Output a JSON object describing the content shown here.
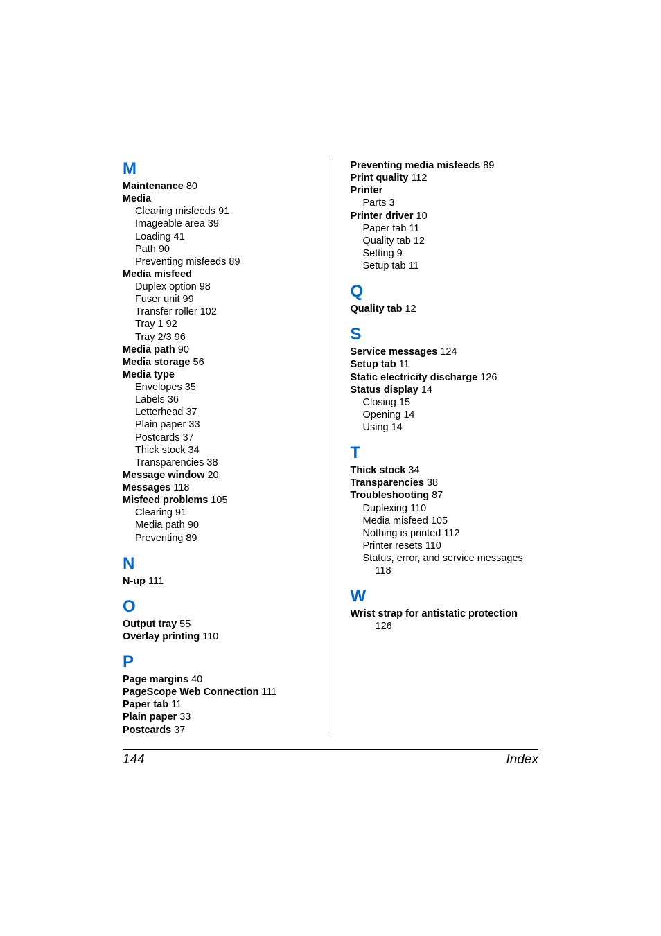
{
  "colors": {
    "heading": "#0066cc",
    "text": "#000000",
    "background": "#ffffff"
  },
  "typography": {
    "body_fontsize": 14.5,
    "heading_fontsize": 24,
    "footer_fontsize": 19
  },
  "footer": {
    "page_number": "144",
    "section": "Index"
  },
  "left": {
    "M": {
      "letter": "M",
      "entries": [
        {
          "bold": "Maintenance",
          "page": " 80"
        },
        {
          "bold": "Media",
          "subs": [
            {
              "text": "Clearing misfeeds 91"
            },
            {
              "text": "Imageable area 39"
            },
            {
              "text": "Loading 41"
            },
            {
              "text": "Path 90"
            },
            {
              "text": "Preventing misfeeds 89"
            }
          ]
        },
        {
          "bold": "Media misfeed",
          "subs": [
            {
              "text": "Duplex option 98"
            },
            {
              "text": "Fuser unit 99"
            },
            {
              "text": "Transfer roller 102"
            },
            {
              "text": "Tray 1 92"
            },
            {
              "text": "Tray 2/3 96"
            }
          ]
        },
        {
          "bold": "Media path",
          "page": " 90"
        },
        {
          "bold": "Media storage",
          "page": " 56"
        },
        {
          "bold": "Media type",
          "subs": [
            {
              "text": "Envelopes 35"
            },
            {
              "text": "Labels 36"
            },
            {
              "text": "Letterhead 37"
            },
            {
              "text": "Plain paper 33"
            },
            {
              "text": "Postcards 37"
            },
            {
              "text": "Thick stock 34"
            },
            {
              "text": "Transparencies 38"
            }
          ]
        },
        {
          "bold": "Message window",
          "page": " 20"
        },
        {
          "bold": "Messages",
          "page": " 118"
        },
        {
          "bold": "Misfeed problems",
          "page": " 105",
          "subs": [
            {
              "text": "Clearing 91"
            },
            {
              "text": "Media path 90"
            },
            {
              "text": "Preventing 89"
            }
          ]
        }
      ]
    },
    "N": {
      "letter": "N",
      "entries": [
        {
          "bold": "N-up",
          "page": " 111"
        }
      ]
    },
    "O": {
      "letter": "O",
      "entries": [
        {
          "bold": "Output tray",
          "page": " 55"
        },
        {
          "bold": "Overlay printing",
          "page": " 110"
        }
      ]
    },
    "P": {
      "letter": "P",
      "entries": [
        {
          "bold": "Page margins",
          "page": " 40"
        },
        {
          "bold": "PageScope Web Connection",
          "page": " 111"
        },
        {
          "bold": "Paper tab",
          "page": " 11"
        },
        {
          "bold": "Plain paper",
          "page": " 33"
        },
        {
          "bold": "Postcards",
          "page": " 37"
        }
      ]
    }
  },
  "right": {
    "Pcont": {
      "entries": [
        {
          "bold": "Preventing media misfeeds",
          "page": " 89"
        },
        {
          "bold": "Print quality",
          "page": " 112"
        },
        {
          "bold": "Printer",
          "subs": [
            {
              "text": "Parts 3"
            }
          ]
        },
        {
          "bold": "Printer driver",
          "page": " 10",
          "subs": [
            {
              "text": "Paper tab 11"
            },
            {
              "text": "Quality tab 12"
            },
            {
              "text": "Setting 9"
            },
            {
              "text": "Setup tab 11"
            }
          ]
        }
      ]
    },
    "Q": {
      "letter": "Q",
      "entries": [
        {
          "bold": "Quality tab",
          "page": " 12"
        }
      ]
    },
    "S": {
      "letter": "S",
      "entries": [
        {
          "bold": "Service messages",
          "page": " 124"
        },
        {
          "bold": "Setup tab",
          "page": " 11"
        },
        {
          "bold": "Static electricity discharge",
          "page": " 126"
        },
        {
          "bold": "Status display",
          "page": " 14",
          "subs": [
            {
              "text": "Closing 15"
            },
            {
              "text": "Opening 14"
            },
            {
              "text": "Using 14"
            }
          ]
        }
      ]
    },
    "T": {
      "letter": "T",
      "entries": [
        {
          "bold": "Thick stock",
          "page": " 34"
        },
        {
          "bold": "Transparencies",
          "page": " 38"
        },
        {
          "bold": "Troubleshooting",
          "page": " 87",
          "subs": [
            {
              "text": "Duplexing 110"
            },
            {
              "text": "Media misfeed 105"
            },
            {
              "text": "Nothing is printed 112"
            },
            {
              "text": "Printer resets 110"
            },
            {
              "text": "Status, error, and service messages 118",
              "wrap": true
            }
          ]
        }
      ]
    },
    "W": {
      "letter": "W",
      "entries": [
        {
          "bold": "Wrist strap for antistatic protection",
          "page_wrap": "126"
        }
      ]
    }
  }
}
